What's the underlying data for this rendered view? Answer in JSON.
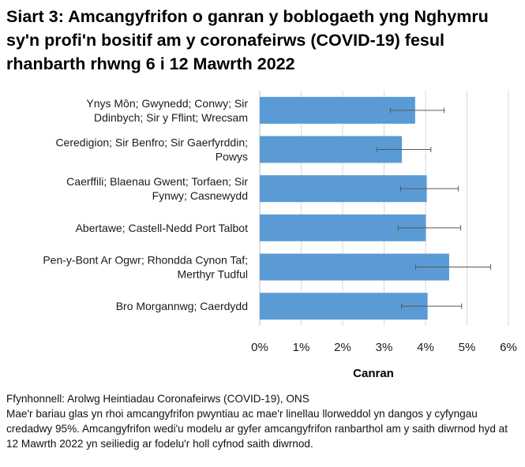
{
  "title": "Siart 3: Amcangyfrifon o ganran y boblogaeth yng Nghymru sy'n profi'n bositif am y coronafeirws (COVID-19) fesul rhanbarth rhwng 6 i 12 Mawrth 2022",
  "chart_data": {
    "type": "bar",
    "orientation": "horizontal",
    "categories": [
      [
        "Ynys Môn; Gwynedd; Conwy; Sir",
        "Ddinbych; Sir y Fflint; Wrecsam"
      ],
      [
        "Ceredigion; Sir Benfro; Sir Gaerfyrddin;",
        "Powys"
      ],
      [
        "Caerffili; Blaenau Gwent; Torfaen; Sir",
        "Fynwy; Casnewydd"
      ],
      [
        "Abertawe; Castell-Nedd Port Talbot"
      ],
      [
        "Pen-y-Bont Ar Ogwr; Rhondda Cynon Taf;",
        "Merthyr Tudful"
      ],
      [
        "Bro Morgannwg; Caerdydd"
      ]
    ],
    "values": [
      3.75,
      3.43,
      4.03,
      4.01,
      4.57,
      4.05
    ],
    "ci_lower": [
      3.15,
      2.82,
      3.4,
      3.34,
      3.76,
      3.42
    ],
    "ci_upper": [
      4.45,
      4.13,
      4.79,
      4.85,
      5.57,
      4.87
    ],
    "xlabel": "Canran",
    "xlim": [
      0,
      6
    ],
    "xticks": [
      "0%",
      "1%",
      "2%",
      "3%",
      "4%",
      "5%",
      "6%"
    ],
    "grid": true,
    "bar_color": "#5b9bd5",
    "error_color": "#595959"
  },
  "notes": [
    "Ffynhonnell: Arolwg Heintiadau Coronafeirws (COVID-19), ONS",
    "Mae'r bariau glas yn rhoi amcangyfrifon pwyntiau ac mae'r linellau llorweddol yn dangos y cyfyngau credadwy 95%. Amcangyfrifon wedi'u modelu ar gyfer amcangyfrifon ranbarthol am y saith diwrnod hyd at 12 Mawrth 2022 yn seiliedig ar fodelu'r holl cyfnod saith diwrnod."
  ]
}
